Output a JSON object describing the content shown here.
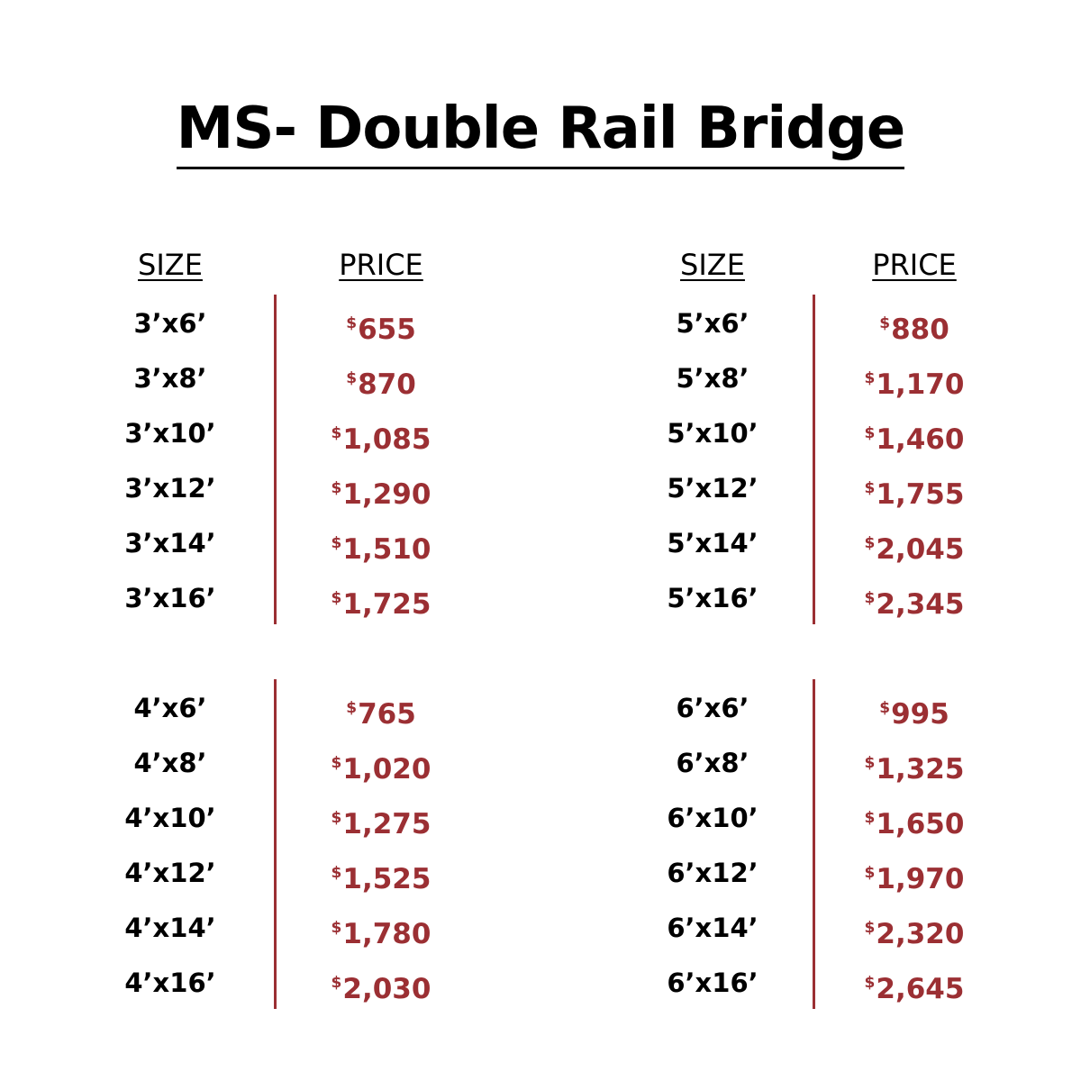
{
  "title": "MS- Double Rail Bridge",
  "headers": {
    "size": "SIZE",
    "price": "PRICE"
  },
  "currency_symbol": "$",
  "accent_color": "#9b2f33",
  "groups": [
    {
      "rows": [
        {
          "size": "3’x6’",
          "price": "655"
        },
        {
          "size": "3’x8’",
          "price": "870"
        },
        {
          "size": "3’x10’",
          "price": "1,085"
        },
        {
          "size": "3’x12’",
          "price": "1,290"
        },
        {
          "size": "3’x14’",
          "price": "1,510"
        },
        {
          "size": "3’x16’",
          "price": "1,725"
        }
      ]
    },
    {
      "rows": [
        {
          "size": "5’x6’",
          "price": "880"
        },
        {
          "size": "5’x8’",
          "price": "1,170"
        },
        {
          "size": "5’x10’",
          "price": "1,460"
        },
        {
          "size": "5’x12’",
          "price": "1,755"
        },
        {
          "size": "5’x14’",
          "price": "2,045"
        },
        {
          "size": "5’x16’",
          "price": "2,345"
        }
      ]
    },
    {
      "rows": [
        {
          "size": "4’x6’",
          "price": "765"
        },
        {
          "size": "4’x8’",
          "price": "1,020"
        },
        {
          "size": "4’x10’",
          "price": "1,275"
        },
        {
          "size": "4’x12’",
          "price": "1,525"
        },
        {
          "size": "4’x14’",
          "price": "1,780"
        },
        {
          "size": "4’x16’",
          "price": "2,030"
        }
      ]
    },
    {
      "rows": [
        {
          "size": "6’x6’",
          "price": "995"
        },
        {
          "size": "6’x8’",
          "price": "1,325"
        },
        {
          "size": "6’x10’",
          "price": "1,650"
        },
        {
          "size": "6’x12’",
          "price": "1,970"
        },
        {
          "size": "6’x14’",
          "price": "2,320"
        },
        {
          "size": "6’x16’",
          "price": "2,645"
        }
      ]
    }
  ]
}
